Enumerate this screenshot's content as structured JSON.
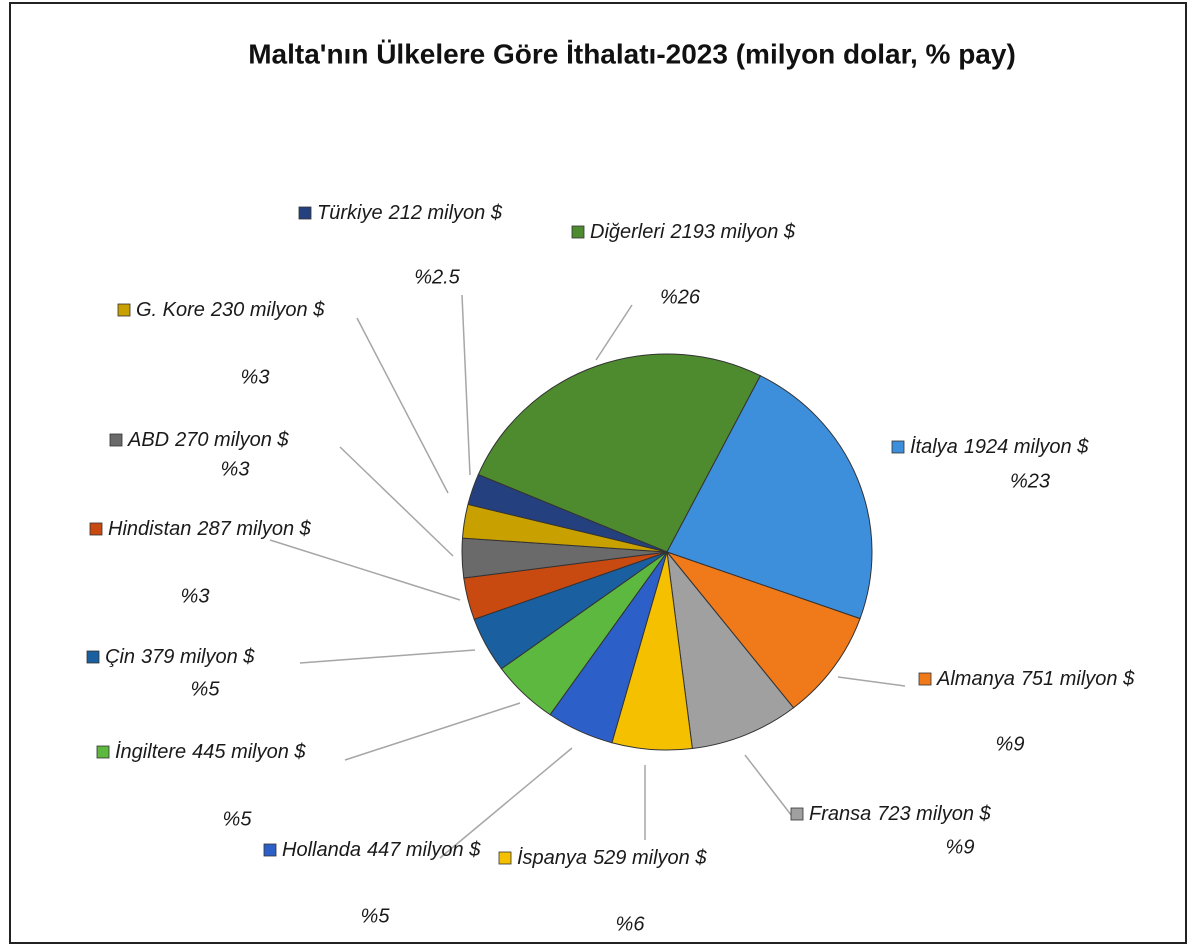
{
  "chart_data": {
    "type": "pie",
    "title": "Malta'nın Ülkelere Göre İthalatı-2023 (milyon dolar, % pay)",
    "categories": [
      "Diğerleri",
      "İtalya",
      "Almanya",
      "Fransa",
      "İspanya",
      "Hollanda",
      "İngiltere",
      "Çin",
      "Hindistan",
      "ABD",
      "G. Kore",
      "Türkiye"
    ],
    "values": [
      2193,
      1924,
      751,
      723,
      529,
      447,
      445,
      379,
      287,
      270,
      230,
      212
    ],
    "value_labels": [
      "2193 milyon $",
      "1924 milyon $",
      "751 milyon $",
      "723 milyon $",
      "529 milyon $",
      "447 milyon $",
      "445 milyon $",
      "379 milyon $",
      "287 milyon $",
      "270 milyon $",
      "230 milyon $",
      "212 milyon $"
    ],
    "shares": [
      26,
      23,
      9,
      9,
      6,
      5,
      5,
      5,
      3,
      3,
      3,
      2.5
    ],
    "share_labels": [
      "%26",
      "%23",
      "%9",
      "%9",
      "%6",
      "%5",
      "%5",
      "%5",
      "%3",
      "%3",
      "%3",
      "%2.5"
    ],
    "colors": [
      "#4e8a2e",
      "#3d8fdc",
      "#f07a1a",
      "#a0a0a0",
      "#f5c000",
      "#2d5fc8",
      "#5cb83e",
      "#1a5fa0",
      "#c84a10",
      "#6a6a6a",
      "#c8a000",
      "#25407f"
    ]
  }
}
